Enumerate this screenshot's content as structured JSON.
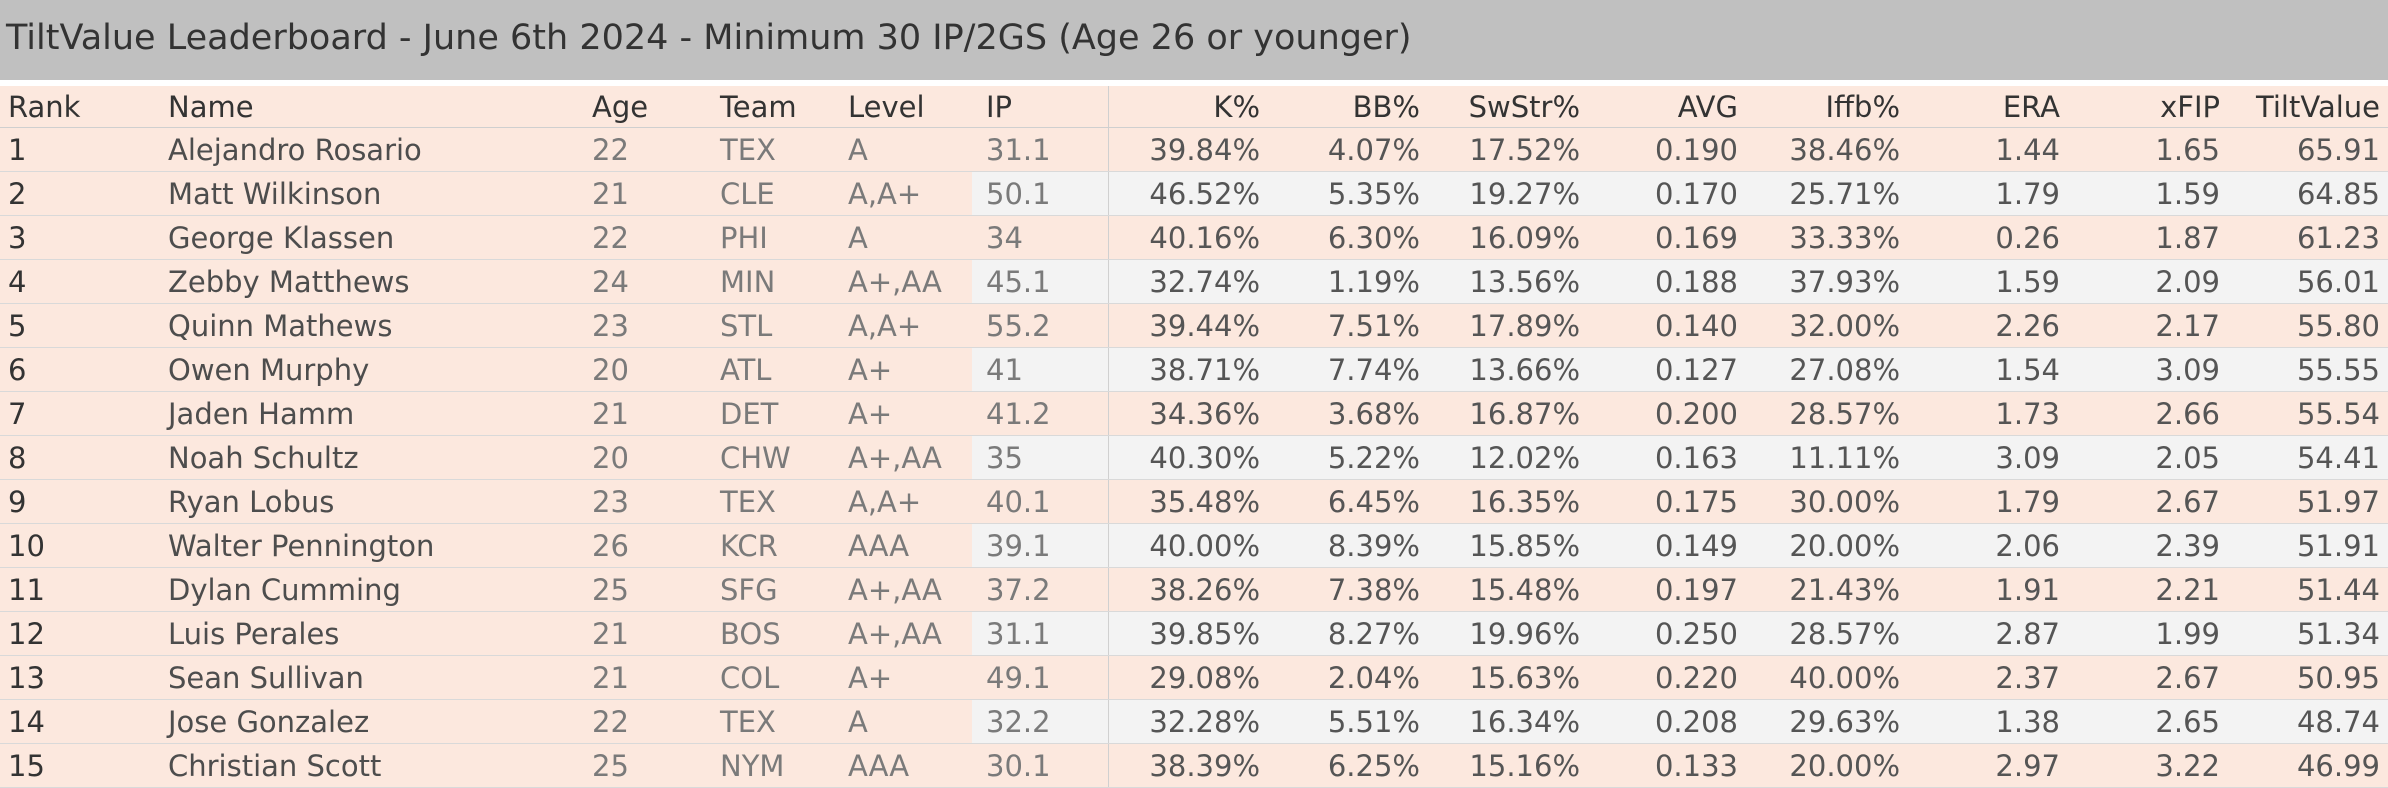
{
  "title": "TiltValue Leaderboard - June 6th 2024 - Minimum 30 IP/2GS (Age 26 or younger)",
  "columns": {
    "rank": "Rank",
    "name": "Name",
    "age": "Age",
    "team": "Team",
    "level": "Level",
    "ip": "IP",
    "k": "K%",
    "bb": "BB%",
    "sw": "SwStr%",
    "avg": "AVG",
    "iffb": "Iffb%",
    "era": "ERA",
    "xfip": "xFIP",
    "tv": "TiltValue"
  },
  "rows": [
    {
      "rank": "1",
      "name": "Alejandro Rosario",
      "age": "22",
      "team": "TEX",
      "level": "A",
      "ip": "31.1",
      "k": "39.84%",
      "bb": "4.07%",
      "sw": "17.52%",
      "avg": "0.190",
      "iffb": "38.46%",
      "era": "1.44",
      "xfip": "1.65",
      "tv": "65.91"
    },
    {
      "rank": "2",
      "name": "Matt Wilkinson",
      "age": "21",
      "team": "CLE",
      "level": "A,A+",
      "ip": "50.1",
      "k": "46.52%",
      "bb": "5.35%",
      "sw": "19.27%",
      "avg": "0.170",
      "iffb": "25.71%",
      "era": "1.79",
      "xfip": "1.59",
      "tv": "64.85"
    },
    {
      "rank": "3",
      "name": "George Klassen",
      "age": "22",
      "team": "PHI",
      "level": "A",
      "ip": "34",
      "k": "40.16%",
      "bb": "6.30%",
      "sw": "16.09%",
      "avg": "0.169",
      "iffb": "33.33%",
      "era": "0.26",
      "xfip": "1.87",
      "tv": "61.23"
    },
    {
      "rank": "4",
      "name": "Zebby Matthews",
      "age": "24",
      "team": "MIN",
      "level": "A+,AA",
      "ip": "45.1",
      "k": "32.74%",
      "bb": "1.19%",
      "sw": "13.56%",
      "avg": "0.188",
      "iffb": "37.93%",
      "era": "1.59",
      "xfip": "2.09",
      "tv": "56.01"
    },
    {
      "rank": "5",
      "name": "Quinn Mathews",
      "age": "23",
      "team": "STL",
      "level": "A,A+",
      "ip": "55.2",
      "k": "39.44%",
      "bb": "7.51%",
      "sw": "17.89%",
      "avg": "0.140",
      "iffb": "32.00%",
      "era": "2.26",
      "xfip": "2.17",
      "tv": "55.80"
    },
    {
      "rank": "6",
      "name": "Owen Murphy",
      "age": "20",
      "team": "ATL",
      "level": "A+",
      "ip": "41",
      "k": "38.71%",
      "bb": "7.74%",
      "sw": "13.66%",
      "avg": "0.127",
      "iffb": "27.08%",
      "era": "1.54",
      "xfip": "3.09",
      "tv": "55.55"
    },
    {
      "rank": "7",
      "name": "Jaden Hamm",
      "age": "21",
      "team": "DET",
      "level": "A+",
      "ip": "41.2",
      "k": "34.36%",
      "bb": "3.68%",
      "sw": "16.87%",
      "avg": "0.200",
      "iffb": "28.57%",
      "era": "1.73",
      "xfip": "2.66",
      "tv": "55.54"
    },
    {
      "rank": "8",
      "name": "Noah Schultz",
      "age": "20",
      "team": "CHW",
      "level": "A+,AA",
      "ip": "35",
      "k": "40.30%",
      "bb": "5.22%",
      "sw": "12.02%",
      "avg": "0.163",
      "iffb": "11.11%",
      "era": "3.09",
      "xfip": "2.05",
      "tv": "54.41"
    },
    {
      "rank": "9",
      "name": "Ryan Lobus",
      "age": "23",
      "team": "TEX",
      "level": "A,A+",
      "ip": "40.1",
      "k": "35.48%",
      "bb": "6.45%",
      "sw": "16.35%",
      "avg": "0.175",
      "iffb": "30.00%",
      "era": "1.79",
      "xfip": "2.67",
      "tv": "51.97"
    },
    {
      "rank": "10",
      "name": "Walter Pennington",
      "age": "26",
      "team": "KCR",
      "level": "AAA",
      "ip": "39.1",
      "k": "40.00%",
      "bb": "8.39%",
      "sw": "15.85%",
      "avg": "0.149",
      "iffb": "20.00%",
      "era": "2.06",
      "xfip": "2.39",
      "tv": "51.91"
    },
    {
      "rank": "11",
      "name": "Dylan Cumming",
      "age": "25",
      "team": "SFG",
      "level": "A+,AA",
      "ip": "37.2",
      "k": "38.26%",
      "bb": "7.38%",
      "sw": "15.48%",
      "avg": "0.197",
      "iffb": "21.43%",
      "era": "1.91",
      "xfip": "2.21",
      "tv": "51.44"
    },
    {
      "rank": "12",
      "name": "Luis Perales",
      "age": "21",
      "team": "BOS",
      "level": "A+,AA",
      "ip": "31.1",
      "k": "39.85%",
      "bb": "8.27%",
      "sw": "19.96%",
      "avg": "0.250",
      "iffb": "28.57%",
      "era": "2.87",
      "xfip": "1.99",
      "tv": "51.34"
    },
    {
      "rank": "13",
      "name": "Sean Sullivan",
      "age": "21",
      "team": "COL",
      "level": "A+",
      "ip": "49.1",
      "k": "29.08%",
      "bb": "2.04%",
      "sw": "15.63%",
      "avg": "0.220",
      "iffb": "40.00%",
      "era": "2.37",
      "xfip": "2.67",
      "tv": "50.95"
    },
    {
      "rank": "14",
      "name": "Jose Gonzalez",
      "age": "22",
      "team": "TEX",
      "level": "A",
      "ip": "32.2",
      "k": "32.28%",
      "bb": "5.51%",
      "sw": "16.34%",
      "avg": "0.208",
      "iffb": "29.63%",
      "era": "1.38",
      "xfip": "2.65",
      "tv": "48.74"
    },
    {
      "rank": "15",
      "name": "Christian Scott",
      "age": "25",
      "team": "NYM",
      "level": "AAA",
      "ip": "30.1",
      "k": "38.39%",
      "bb": "6.25%",
      "sw": "15.16%",
      "avg": "0.133",
      "iffb": "20.00%",
      "era": "2.97",
      "xfip": "3.22",
      "tv": "46.99"
    }
  ]
}
